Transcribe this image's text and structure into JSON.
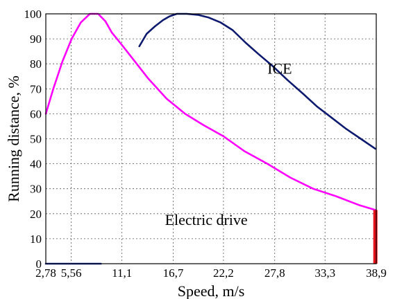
{
  "chart_data": {
    "type": "line",
    "xlabel": "Speed, m/s",
    "ylabel": "Running distance, %",
    "xlim": [
      2.78,
      38.9
    ],
    "ylim": [
      0,
      100
    ],
    "x_ticks": [
      2.78,
      5.56,
      11.1,
      16.7,
      22.2,
      27.8,
      33.3,
      38.9
    ],
    "x_tick_labels": [
      "2,78",
      "5,56",
      "11,1",
      "16,7",
      "22,2",
      "27,8",
      "33,3",
      "38,9"
    ],
    "y_ticks": [
      0,
      10,
      20,
      30,
      40,
      50,
      60,
      70,
      80,
      90,
      100
    ],
    "grid": true,
    "series": [
      {
        "name": "ICE",
        "color": "#0d1a6e",
        "x": [
          13.0,
          13.8,
          14.7,
          15.6,
          16.3,
          17.1,
          18.2,
          19.4,
          20.6,
          21.9,
          23.2,
          24.6,
          26.0,
          27.6,
          29.2,
          30.9,
          32.4,
          34.0,
          35.6,
          37.2,
          38.8
        ],
        "y": [
          87,
          92,
          95,
          97.5,
          99,
          100,
          100,
          99.6,
          98.5,
          96.5,
          93.5,
          88.5,
          84,
          79,
          73.5,
          68,
          63,
          58.5,
          54,
          50,
          46
        ]
      },
      {
        "name": "Electric drive",
        "color": "#ff00ff",
        "x": [
          2.78,
          3.6,
          4.6,
          5.6,
          6.6,
          7.6,
          8.5,
          9.3,
          10.0,
          11.0,
          12.5,
          14.0,
          16.0,
          18.0,
          20.0,
          22.2,
          24.5,
          27.0,
          29.5,
          32.0,
          34.5,
          37.0,
          38.8
        ],
        "y": [
          60,
          70,
          81,
          90,
          96.5,
          100,
          100,
          97,
          92.5,
          88,
          81,
          74,
          66,
          60,
          55.5,
          51,
          45,
          40,
          34.5,
          30,
          27,
          23.5,
          21.5
        ]
      },
      {
        "color": "#1a2fa0",
        "x": [
          2.78,
          8.8
        ],
        "y": [
          0,
          0
        ]
      },
      {
        "color": "#e8131b",
        "x": [
          38.8,
          38.8
        ],
        "y": [
          0,
          21.5
        ],
        "bar_width": 6
      }
    ],
    "annotations": [
      {
        "text": "ICE",
        "x": 27.0,
        "y": 76,
        "series": "ICE"
      },
      {
        "text": "Electric drive",
        "x": 15.8,
        "y": 15.5,
        "series": "Electric drive"
      }
    ]
  }
}
